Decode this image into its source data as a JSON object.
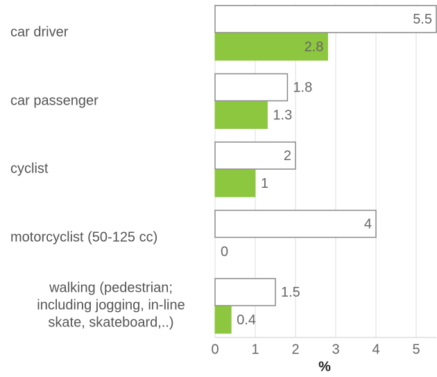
{
  "chart_data": {
    "type": "bar",
    "orientation": "horizontal",
    "categories": [
      "car driver",
      "car passenger",
      "cyclist",
      "motorcyclist (50-125 cc)",
      "walking (pedestrian;\nincluding jogging, in-line\nskate, skateboard,..)"
    ],
    "series": [
      {
        "color": "#ffffff",
        "values": [
          5.5,
          1.8,
          2,
          4,
          1.5
        ]
      },
      {
        "color": "#8dc63f",
        "values": [
          2.8,
          1.3,
          1,
          0,
          0.4
        ]
      }
    ],
    "x_label": "%",
    "xlim": [
      0,
      5.5
    ],
    "xticks": [
      0,
      1,
      2,
      3,
      4,
      5
    ],
    "grid": true
  }
}
